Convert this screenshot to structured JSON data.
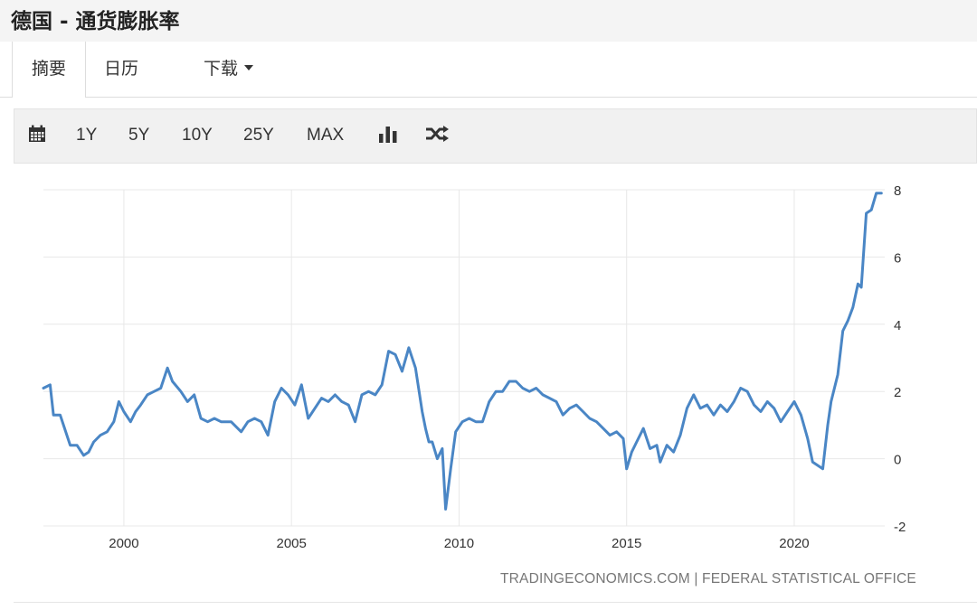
{
  "page": {
    "title": "德国 - 通货膨胀率"
  },
  "tabs": {
    "summary": "摘要",
    "calendar": "日历",
    "download": "下载"
  },
  "toolbar": {
    "icons": [
      "calendar-icon",
      "bar-chart-icon",
      "shuffle-icon"
    ],
    "ranges": [
      "1Y",
      "5Y",
      "10Y",
      "25Y",
      "MAX"
    ]
  },
  "source": "TRADINGECONOMICS.COM | FEDERAL STATISTICAL OFFICE",
  "colors": {
    "line": "#4a86c5",
    "grid": "#e8e8e8"
  },
  "chart_data": {
    "type": "line",
    "title": "",
    "xlabel": "",
    "ylabel": "",
    "x_ticks": [
      "2000",
      "2005",
      "2010",
      "2015",
      "2020"
    ],
    "y_ticks": [
      "-2",
      "0",
      "2",
      "4",
      "6",
      "8"
    ],
    "ylim": [
      -2,
      8
    ],
    "xlim": [
      1997.6,
      2022.7
    ],
    "grid": true,
    "series": [
      {
        "x": [
          1997.6,
          1997.8,
          1997.9,
          1998.0,
          1998.1,
          1998.2,
          1998.4,
          1998.6,
          1998.8,
          1998.95,
          1999.1,
          1999.3,
          1999.5,
          1999.7,
          1999.85,
          2000.0,
          2000.2,
          2000.35,
          2000.5,
          2000.7,
          2000.9,
          2001.1,
          2001.3,
          2001.45,
          2001.7,
          2001.9,
          2002.1,
          2002.3,
          2002.5,
          2002.7,
          2002.9,
          2003.2,
          2003.5,
          2003.7,
          2003.9,
          2004.1,
          2004.3,
          2004.5,
          2004.7,
          2004.9,
          2005.1,
          2005.3,
          2005.5,
          2005.7,
          2005.9,
          2006.1,
          2006.3,
          2006.5,
          2006.7,
          2006.9,
          2007.1,
          2007.3,
          2007.5,
          2007.7,
          2007.9,
          2008.1,
          2008.3,
          2008.5,
          2008.7,
          2008.9,
          2009.0,
          2009.1,
          2009.2,
          2009.35,
          2009.5,
          2009.6,
          2009.75,
          2009.9,
          2010.1,
          2010.3,
          2010.5,
          2010.7,
          2010.9,
          2011.1,
          2011.3,
          2011.5,
          2011.7,
          2011.9,
          2012.1,
          2012.3,
          2012.5,
          2012.7,
          2012.9,
          2013.1,
          2013.3,
          2013.5,
          2013.7,
          2013.9,
          2014.1,
          2014.3,
          2014.5,
          2014.7,
          2014.9,
          2015.0,
          2015.15,
          2015.3,
          2015.5,
          2015.7,
          2015.9,
          2016.0,
          2016.2,
          2016.4,
          2016.6,
          2016.8,
          2017.0,
          2017.2,
          2017.4,
          2017.6,
          2017.8,
          2018.0,
          2018.2,
          2018.4,
          2018.6,
          2018.8,
          2019.0,
          2019.2,
          2019.4,
          2019.6,
          2019.8,
          2020.0,
          2020.2,
          2020.4,
          2020.55,
          2020.7,
          2020.85,
          2021.0,
          2021.1,
          2021.3,
          2021.45,
          2021.6,
          2021.75,
          2021.9,
          2022.0,
          2022.15,
          2022.3,
          2022.45,
          2022.6
        ],
        "values": [
          2.1,
          2.2,
          1.3,
          1.3,
          1.3,
          1.0,
          0.4,
          0.4,
          0.1,
          0.2,
          0.5,
          0.7,
          0.8,
          1.1,
          1.7,
          1.4,
          1.1,
          1.4,
          1.6,
          1.9,
          2.0,
          2.1,
          2.7,
          2.3,
          2.0,
          1.7,
          1.9,
          1.2,
          1.1,
          1.2,
          1.1,
          1.1,
          0.8,
          1.1,
          1.2,
          1.1,
          0.7,
          1.7,
          2.1,
          1.9,
          1.6,
          2.2,
          1.2,
          1.5,
          1.8,
          1.7,
          1.9,
          1.7,
          1.6,
          1.1,
          1.9,
          2.0,
          1.9,
          2.2,
          3.2,
          3.1,
          2.6,
          3.3,
          2.7,
          1.4,
          0.9,
          0.5,
          0.5,
          0.0,
          0.3,
          -1.5,
          -0.3,
          0.8,
          1.1,
          1.2,
          1.1,
          1.1,
          1.7,
          2.0,
          2.0,
          2.3,
          2.3,
          2.1,
          2.0,
          2.1,
          1.9,
          1.8,
          1.7,
          1.3,
          1.5,
          1.6,
          1.4,
          1.2,
          1.1,
          0.9,
          0.7,
          0.8,
          0.6,
          -0.3,
          0.2,
          0.5,
          0.9,
          0.3,
          0.4,
          -0.1,
          0.4,
          0.2,
          0.7,
          1.5,
          1.9,
          1.5,
          1.6,
          1.3,
          1.6,
          1.4,
          1.7,
          2.1,
          2.0,
          1.6,
          1.4,
          1.7,
          1.5,
          1.1,
          1.4,
          1.7,
          1.3,
          0.6,
          -0.1,
          -0.2,
          -0.3,
          1.0,
          1.7,
          2.5,
          3.8,
          4.1,
          4.5,
          5.2,
          5.1,
          7.3,
          7.4,
          7.9,
          7.9
        ]
      }
    ]
  }
}
